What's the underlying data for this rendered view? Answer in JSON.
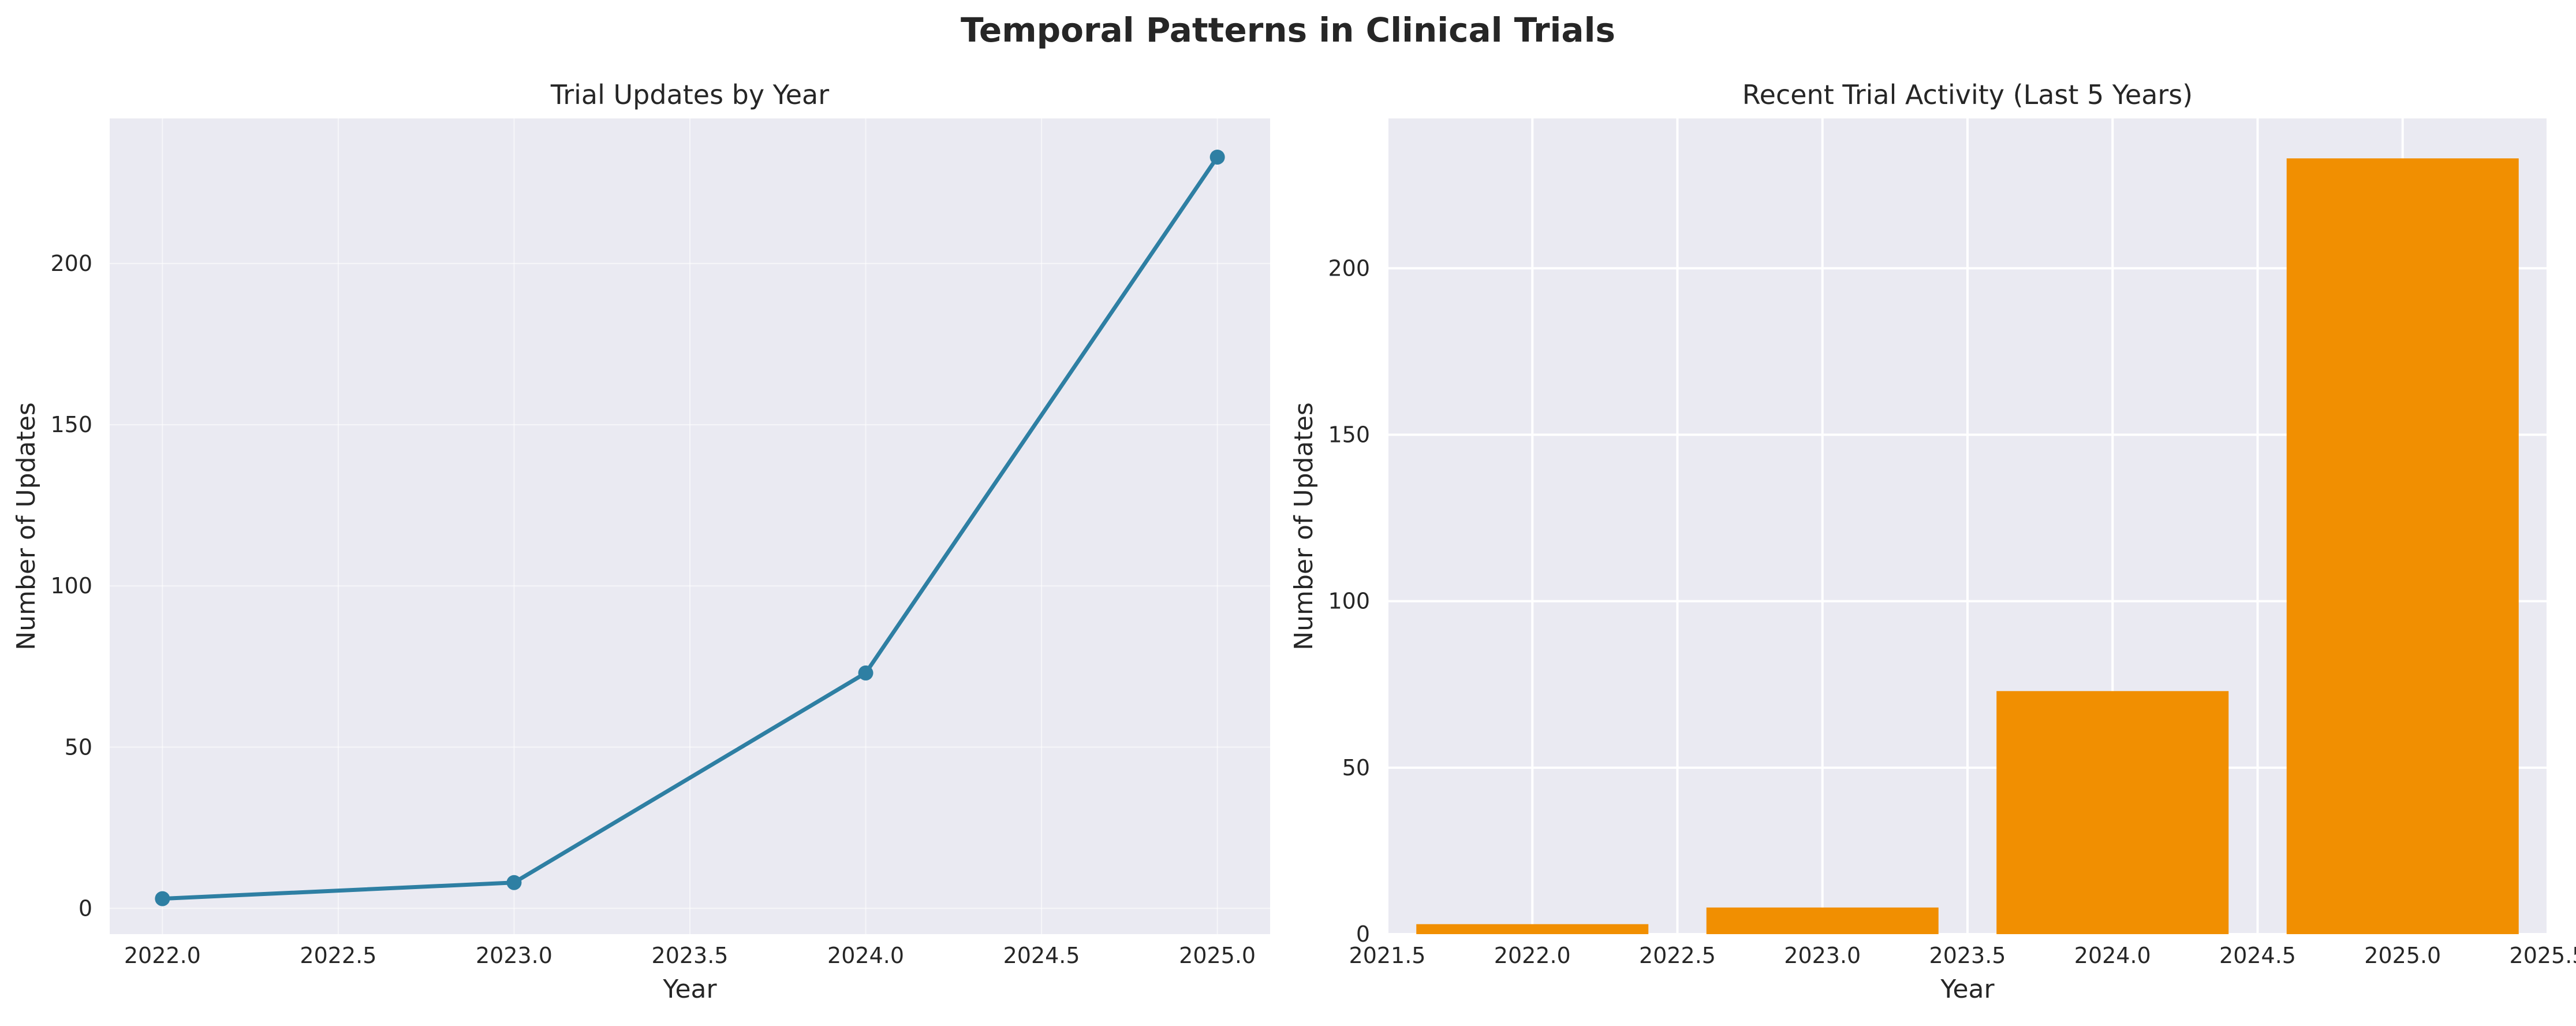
{
  "figure_title": "Temporal Patterns in Clinical Trials",
  "colors": {
    "line": "#2e7fa3",
    "bar": "#f18f01",
    "plot_bg": "#eaeaf2",
    "grid": "#ffffff",
    "text": "#262626"
  },
  "chart_data": [
    {
      "type": "line",
      "title": "Trial Updates by Year",
      "xlabel": "Year",
      "ylabel": "Number of Updates",
      "series": [
        {
          "x": [
            2022,
            2023,
            2024,
            2025
          ],
          "values": [
            3,
            8,
            73,
            233
          ]
        }
      ],
      "xlim": [
        2021.85,
        2025.15
      ],
      "ylim": [
        -8,
        245
      ],
      "xticks": [
        2022.0,
        2022.5,
        2023.0,
        2023.5,
        2024.0,
        2024.5,
        2025.0
      ],
      "xtick_labels": [
        "2022.0",
        "2022.5",
        "2023.0",
        "2023.5",
        "2024.0",
        "2024.5",
        "2025.0"
      ],
      "yticks": [
        0,
        50,
        100,
        150,
        200
      ],
      "ytick_labels": [
        "0",
        "50",
        "100",
        "150",
        "200"
      ],
      "grid": true,
      "markers": true
    },
    {
      "type": "bar",
      "title": "Recent Trial Activity (Last 5 Years)",
      "xlabel": "Year",
      "ylabel": "Number of Updates",
      "categories": [
        2022,
        2023,
        2024,
        2025
      ],
      "values": [
        3,
        8,
        73,
        233
      ],
      "bar_width": 0.8,
      "xlim": [
        2021.5,
        2025.5
      ],
      "ylim": [
        0,
        245
      ],
      "xticks": [
        2021.5,
        2022.0,
        2022.5,
        2023.0,
        2023.5,
        2024.0,
        2024.5,
        2025.0,
        2025.5
      ],
      "xtick_labels": [
        "2021.5",
        "2022.0",
        "2022.5",
        "2023.0",
        "2023.5",
        "2024.0",
        "2024.5",
        "2025.0",
        "2025.5"
      ],
      "yticks": [
        0,
        50,
        100,
        150,
        200
      ],
      "ytick_labels": [
        "0",
        "50",
        "100",
        "150",
        "200"
      ],
      "grid": true
    }
  ]
}
